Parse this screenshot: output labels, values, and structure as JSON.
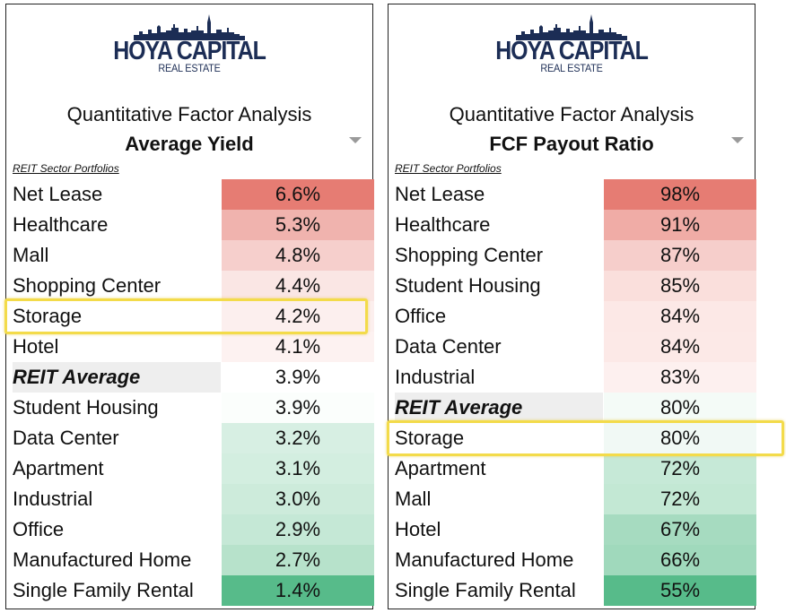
{
  "colors": {
    "brand": "#1c2d55",
    "highlight": "#f3db4a",
    "avg_row": "#eeeeee"
  },
  "panels": [
    {
      "logo": {
        "main": "HOYA CAPITAL",
        "sub": "REAL ESTATE"
      },
      "subtitle": "Quantitative Factor Analysis",
      "metric": "Average Yield",
      "portfolios_label": "REIT Sector Portfolios",
      "dropdown_icon": "triangle-down",
      "highlighted_row": "Storage",
      "rows": [
        {
          "label": "Net Lease",
          "value": "6.6%",
          "color": "#e67c73"
        },
        {
          "label": "Healthcare",
          "value": "5.3%",
          "color": "#f0b3ae"
        },
        {
          "label": "Mall",
          "value": "4.8%",
          "color": "#f6cfcc"
        },
        {
          "label": "Shopping Center",
          "value": "4.4%",
          "color": "#fae6e4"
        },
        {
          "label": "Storage",
          "value": "4.2%",
          "color": "#fcefee"
        },
        {
          "label": "Hotel",
          "value": "4.1%",
          "color": "#fdf2f1"
        },
        {
          "label": "REIT Average",
          "value": "3.9%",
          "color": "#ffffff",
          "average": true
        },
        {
          "label": "Student Housing",
          "value": "3.9%",
          "color": "#fbfefc"
        },
        {
          "label": "Data Center",
          "value": "3.2%",
          "color": "#d7efe3"
        },
        {
          "label": "Apartment",
          "value": "3.1%",
          "color": "#d3eee0"
        },
        {
          "label": "Industrial",
          "value": "3.0%",
          "color": "#cdebdb"
        },
        {
          "label": "Office",
          "value": "2.9%",
          "color": "#c5e8d6"
        },
        {
          "label": "Manufactured Home",
          "value": "2.7%",
          "color": "#b7e2cb"
        },
        {
          "label": "Single Family Rental",
          "value": "1.4%",
          "color": "#57bb8a"
        }
      ]
    },
    {
      "logo": {
        "main": "HOYA CAPITAL",
        "sub": "REAL ESTATE"
      },
      "subtitle": "Quantitative Factor Analysis",
      "metric": "FCF Payout Ratio",
      "portfolios_label": "REIT Sector Portfolios",
      "dropdown_icon": "triangle-down",
      "highlighted_row": "Storage",
      "rows": [
        {
          "label": "Net Lease",
          "value": "98%",
          "color": "#e67c73"
        },
        {
          "label": "Healthcare",
          "value": "91%",
          "color": "#f0aca6"
        },
        {
          "label": "Shopping Center",
          "value": "87%",
          "color": "#f6cecb"
        },
        {
          "label": "Student Housing",
          "value": "85%",
          "color": "#fadfdc"
        },
        {
          "label": "Office",
          "value": "84%",
          "color": "#fce8e6"
        },
        {
          "label": "Data Center",
          "value": "84%",
          "color": "#fce9e7"
        },
        {
          "label": "Industrial",
          "value": "83%",
          "color": "#fdf0ef"
        },
        {
          "label": "REIT Average",
          "value": "80%",
          "color": "#f4fbf7",
          "average": true
        },
        {
          "label": "Storage",
          "value": "80%",
          "color": "#f1f9f5"
        },
        {
          "label": "Apartment",
          "value": "72%",
          "color": "#c6e9d7"
        },
        {
          "label": "Mall",
          "value": "72%",
          "color": "#c3e8d4"
        },
        {
          "label": "Hotel",
          "value": "67%",
          "color": "#a6dbc0"
        },
        {
          "label": "Manufactured Home",
          "value": "66%",
          "color": "#a0d9bc"
        },
        {
          "label": "Single Family Rental",
          "value": "55%",
          "color": "#57bb8a"
        }
      ]
    }
  ]
}
